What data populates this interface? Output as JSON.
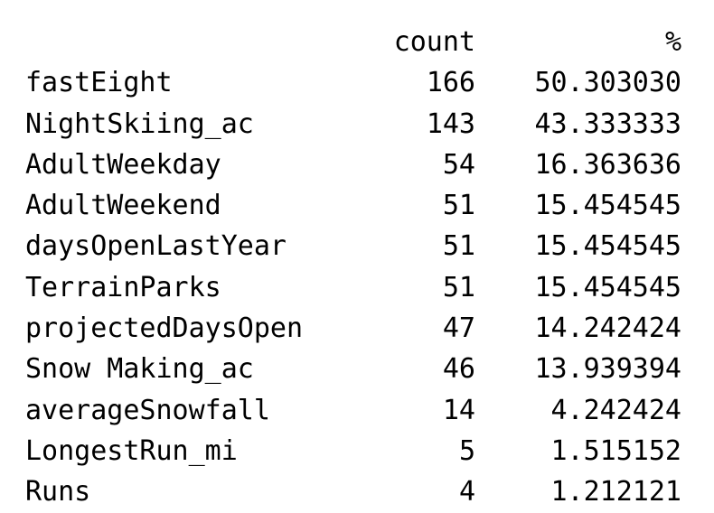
{
  "table": {
    "columns": [
      "count",
      "%"
    ],
    "rows": [
      {
        "name": "fastEight",
        "count": "166",
        "pct": "50.303030"
      },
      {
        "name": "NightSkiing_ac",
        "count": "143",
        "pct": "43.333333"
      },
      {
        "name": "AdultWeekday",
        "count": "54",
        "pct": "16.363636"
      },
      {
        "name": "AdultWeekend",
        "count": "51",
        "pct": "15.454545"
      },
      {
        "name": "daysOpenLastYear",
        "count": "51",
        "pct": "15.454545"
      },
      {
        "name": "TerrainParks",
        "count": "51",
        "pct": "15.454545"
      },
      {
        "name": "projectedDaysOpen",
        "count": "47",
        "pct": "14.242424"
      },
      {
        "name": "Snow Making_ac",
        "count": "46",
        "pct": "13.939394"
      },
      {
        "name": "averageSnowfall",
        "count": "14",
        "pct": "4.242424"
      },
      {
        "name": "LongestRun_mi",
        "count": "5",
        "pct": "1.515152"
      },
      {
        "name": "Runs",
        "count": "4",
        "pct": "1.212121"
      }
    ]
  }
}
